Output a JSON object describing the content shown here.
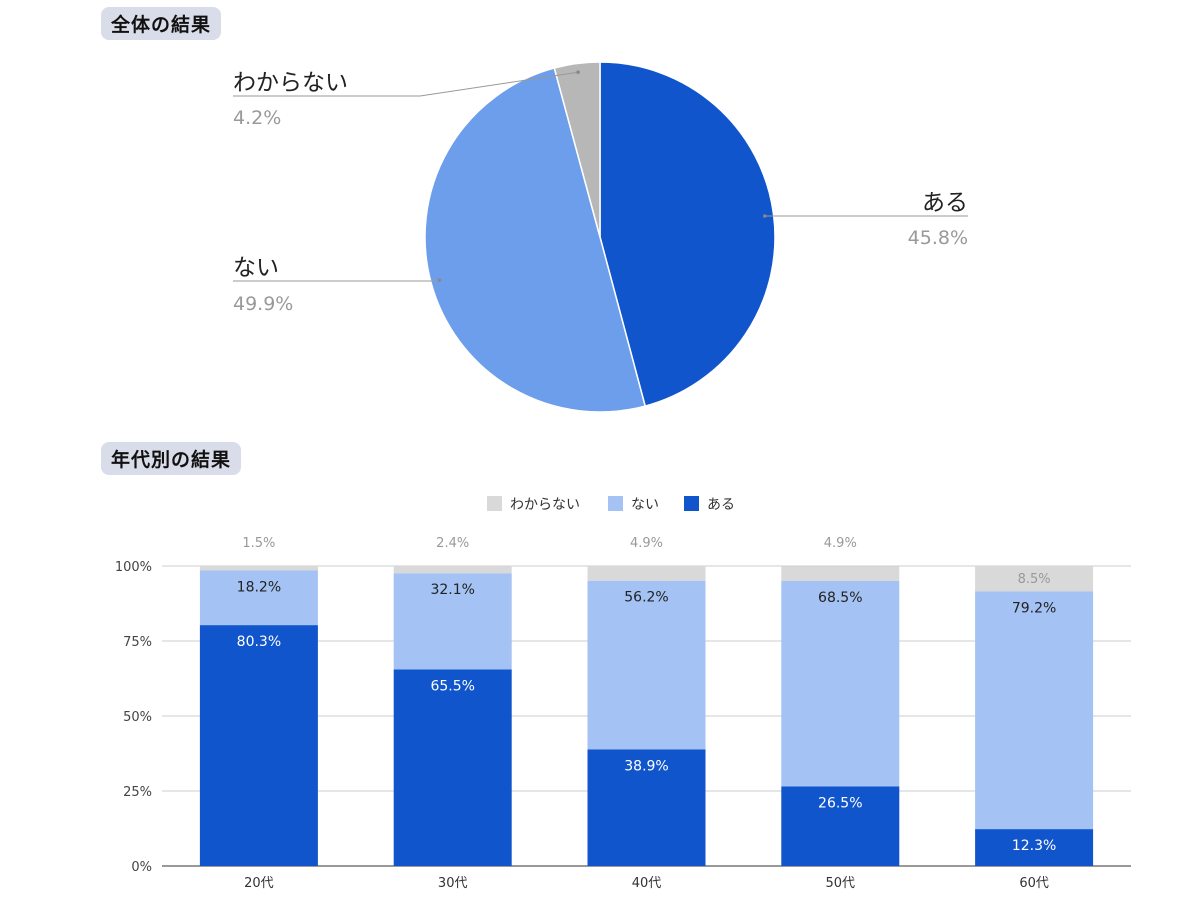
{
  "sections": {
    "total": "全体の結果",
    "by_age": "年代別の結果"
  },
  "colors": {
    "yes": "#1155cc",
    "no_pie": "#6d9eeb",
    "no_bar": "#a4c2f4",
    "unknown_pie": "#b7b7b7",
    "unknown_bar": "#d9d9d9",
    "pct_label": "#999999",
    "grid": "#cccccc"
  },
  "chart_data": [
    {
      "type": "pie",
      "slices": [
        {
          "label": "ある",
          "value": 45.8,
          "display": "45.8%"
        },
        {
          "label": "ない",
          "value": 49.9,
          "display": "49.9%"
        },
        {
          "label": "わからない",
          "value": 4.2,
          "display": "4.2%"
        }
      ]
    },
    {
      "type": "bar",
      "stacked": true,
      "categories": [
        "20代",
        "30代",
        "40代",
        "50代",
        "60代"
      ],
      "series": [
        {
          "name": "ある",
          "values": [
            80.3,
            65.5,
            38.9,
            26.5,
            12.3
          ],
          "labels": [
            "80.3%",
            "65.5%",
            "38.9%",
            "26.5%",
            "12.3%"
          ]
        },
        {
          "name": "ない",
          "values": [
            18.2,
            32.1,
            56.2,
            68.5,
            79.2
          ],
          "labels": [
            "18.2%",
            "32.1%",
            "56.2%",
            "68.5%",
            "79.2%"
          ]
        },
        {
          "name": "わからない",
          "values": [
            1.5,
            2.4,
            4.9,
            4.9,
            8.5
          ],
          "labels": [
            "1.5%",
            "2.4%",
            "4.9%",
            "4.9%",
            "8.5%"
          ]
        }
      ],
      "legend": [
        "わからない",
        "ない",
        "ある"
      ],
      "legend_position": "top",
      "yticks": [
        "0%",
        "25%",
        "50%",
        "75%",
        "100%"
      ],
      "ylim": [
        0,
        100
      ],
      "grid": true
    }
  ]
}
